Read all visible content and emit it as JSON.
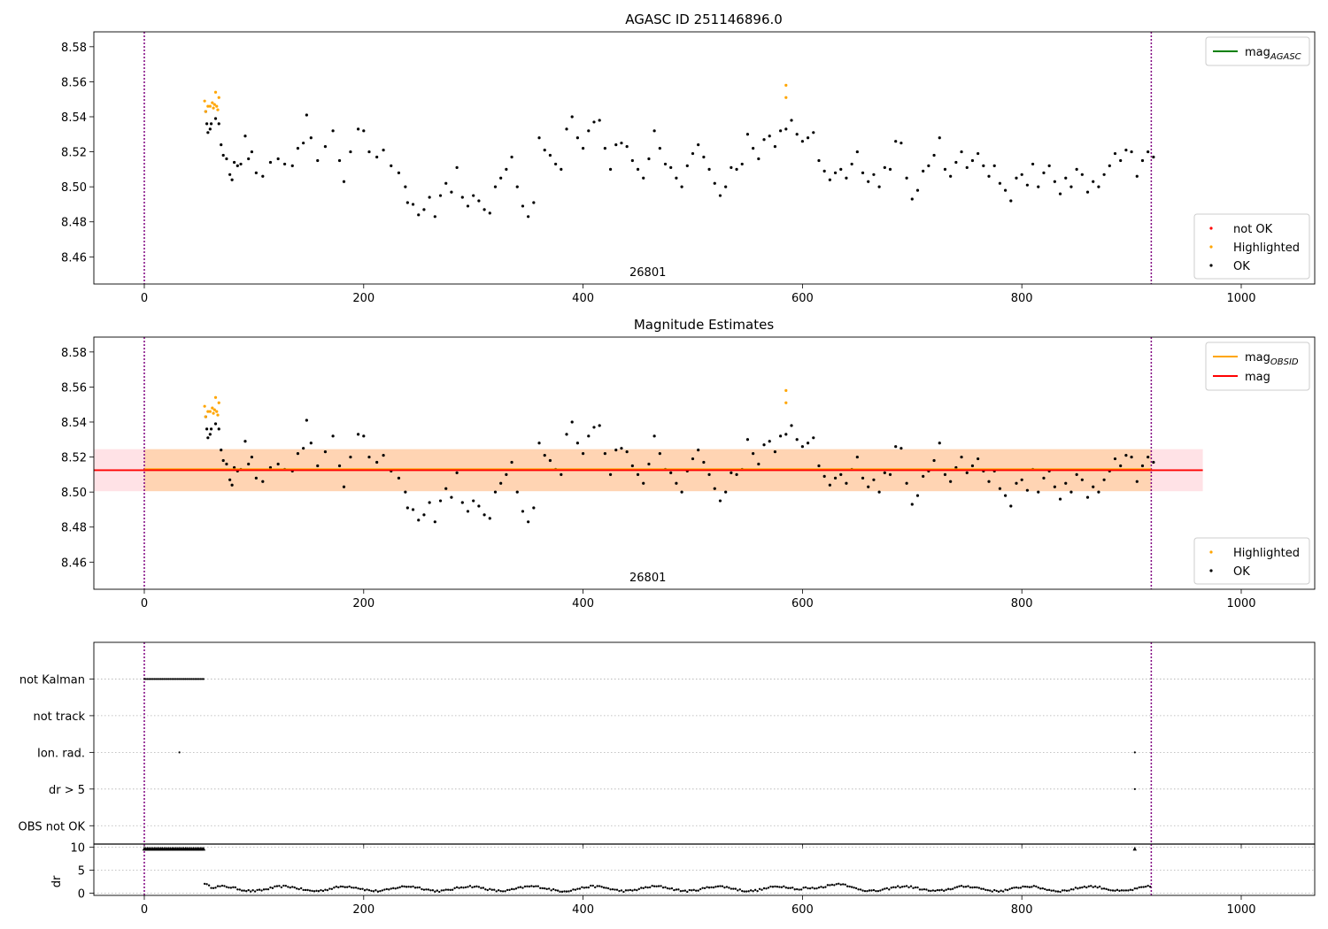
{
  "figure_title": "AGASC ID 251146896.0",
  "chart_data": [
    {
      "type": "scatter",
      "panel": "top",
      "title": "",
      "xlim": [
        -46,
        1067
      ],
      "ylim": [
        8.4445,
        8.5885
      ],
      "x_ticks": [
        0,
        200,
        400,
        600,
        800,
        1000
      ],
      "y_ticks": [
        8.46,
        8.48,
        8.5,
        8.52,
        8.54,
        8.56,
        8.58
      ],
      "y_tick_labels": [
        "8.46",
        "8.48",
        "8.50",
        "8.52",
        "8.54",
        "8.56",
        "8.58"
      ],
      "grid": false,
      "obsid_bounds": [
        0,
        918
      ],
      "obsid_label": "26801",
      "obsid_label_x": 459,
      "legend_lines": [
        {
          "label": "mag",
          "subscript": "AGASC",
          "color": "#008000"
        }
      ],
      "legend_points": [
        {
          "label": "not OK",
          "color": "#ff0000"
        },
        {
          "label": "Highlighted",
          "color": "#ffa500"
        },
        {
          "label": "OK",
          "color": "#000000"
        }
      ],
      "highlighted_points": [
        [
          55,
          8.549
        ],
        [
          56,
          8.543
        ],
        [
          58,
          8.546
        ],
        [
          60,
          8.546
        ],
        [
          62,
          8.548
        ],
        [
          63,
          8.545
        ],
        [
          64,
          8.547
        ],
        [
          65,
          8.554
        ],
        [
          66,
          8.546
        ],
        [
          67,
          8.544
        ],
        [
          68,
          8.551
        ],
        [
          585,
          8.558
        ],
        [
          585,
          8.551
        ]
      ],
      "ok_points": [
        [
          56,
          8.543
        ],
        [
          57,
          8.536
        ],
        [
          58,
          8.531
        ],
        [
          60,
          8.533
        ],
        [
          61,
          8.536
        ],
        [
          65,
          8.539
        ],
        [
          68,
          8.536
        ],
        [
          70,
          8.524
        ],
        [
          72,
          8.518
        ],
        [
          75,
          8.516
        ],
        [
          78,
          8.507
        ],
        [
          80,
          8.504
        ],
        [
          82,
          8.514
        ],
        [
          85,
          8.512
        ],
        [
          88,
          8.513
        ],
        [
          92,
          8.529
        ],
        [
          95,
          8.516
        ],
        [
          98,
          8.52
        ],
        [
          102,
          8.508
        ],
        [
          108,
          8.506
        ],
        [
          115,
          8.514
        ],
        [
          122,
          8.516
        ],
        [
          128,
          8.513
        ],
        [
          135,
          8.512
        ],
        [
          140,
          8.522
        ],
        [
          145,
          8.525
        ],
        [
          148,
          8.541
        ],
        [
          152,
          8.528
        ],
        [
          158,
          8.515
        ],
        [
          165,
          8.523
        ],
        [
          172,
          8.532
        ],
        [
          178,
          8.515
        ],
        [
          182,
          8.503
        ],
        [
          188,
          8.52
        ],
        [
          195,
          8.533
        ],
        [
          200,
          8.532
        ],
        [
          205,
          8.52
        ],
        [
          212,
          8.517
        ],
        [
          218,
          8.521
        ],
        [
          225,
          8.512
        ],
        [
          232,
          8.508
        ],
        [
          238,
          8.5
        ],
        [
          240,
          8.491
        ],
        [
          245,
          8.49
        ],
        [
          250,
          8.484
        ],
        [
          255,
          8.487
        ],
        [
          260,
          8.494
        ],
        [
          265,
          8.483
        ],
        [
          270,
          8.495
        ],
        [
          275,
          8.502
        ],
        [
          280,
          8.497
        ],
        [
          285,
          8.511
        ],
        [
          290,
          8.494
        ],
        [
          295,
          8.489
        ],
        [
          300,
          8.495
        ],
        [
          305,
          8.492
        ],
        [
          310,
          8.487
        ],
        [
          315,
          8.485
        ],
        [
          320,
          8.5
        ],
        [
          325,
          8.505
        ],
        [
          330,
          8.51
        ],
        [
          335,
          8.517
        ],
        [
          340,
          8.5
        ],
        [
          345,
          8.489
        ],
        [
          350,
          8.483
        ],
        [
          355,
          8.491
        ],
        [
          360,
          8.528
        ],
        [
          365,
          8.521
        ],
        [
          370,
          8.518
        ],
        [
          375,
          8.513
        ],
        [
          380,
          8.51
        ],
        [
          385,
          8.533
        ],
        [
          390,
          8.54
        ],
        [
          395,
          8.528
        ],
        [
          400,
          8.522
        ],
        [
          405,
          8.532
        ],
        [
          410,
          8.537
        ],
        [
          415,
          8.538
        ],
        [
          420,
          8.522
        ],
        [
          425,
          8.51
        ],
        [
          430,
          8.524
        ],
        [
          435,
          8.525
        ],
        [
          440,
          8.523
        ],
        [
          445,
          8.515
        ],
        [
          450,
          8.51
        ],
        [
          455,
          8.505
        ],
        [
          460,
          8.516
        ],
        [
          465,
          8.532
        ],
        [
          470,
          8.522
        ],
        [
          475,
          8.513
        ],
        [
          480,
          8.511
        ],
        [
          485,
          8.505
        ],
        [
          490,
          8.5
        ],
        [
          495,
          8.512
        ],
        [
          500,
          8.519
        ],
        [
          505,
          8.524
        ],
        [
          510,
          8.517
        ],
        [
          515,
          8.51
        ],
        [
          520,
          8.502
        ],
        [
          525,
          8.495
        ],
        [
          530,
          8.5
        ],
        [
          535,
          8.511
        ],
        [
          540,
          8.51
        ],
        [
          545,
          8.513
        ],
        [
          550,
          8.53
        ],
        [
          555,
          8.522
        ],
        [
          560,
          8.516
        ],
        [
          565,
          8.527
        ],
        [
          570,
          8.529
        ],
        [
          575,
          8.523
        ],
        [
          580,
          8.532
        ],
        [
          585,
          8.533
        ],
        [
          590,
          8.538
        ],
        [
          595,
          8.53
        ],
        [
          600,
          8.526
        ],
        [
          605,
          8.528
        ],
        [
          610,
          8.531
        ],
        [
          615,
          8.515
        ],
        [
          620,
          8.509
        ],
        [
          625,
          8.504
        ],
        [
          630,
          8.508
        ],
        [
          635,
          8.51
        ],
        [
          640,
          8.505
        ],
        [
          645,
          8.513
        ],
        [
          650,
          8.52
        ],
        [
          655,
          8.508
        ],
        [
          660,
          8.503
        ],
        [
          665,
          8.507
        ],
        [
          670,
          8.5
        ],
        [
          675,
          8.511
        ],
        [
          680,
          8.51
        ],
        [
          685,
          8.526
        ],
        [
          690,
          8.525
        ],
        [
          695,
          8.505
        ],
        [
          700,
          8.493
        ],
        [
          705,
          8.498
        ],
        [
          710,
          8.509
        ],
        [
          715,
          8.512
        ],
        [
          720,
          8.518
        ],
        [
          725,
          8.528
        ],
        [
          730,
          8.51
        ],
        [
          735,
          8.506
        ],
        [
          740,
          8.514
        ],
        [
          745,
          8.52
        ],
        [
          750,
          8.511
        ],
        [
          755,
          8.515
        ],
        [
          760,
          8.519
        ],
        [
          765,
          8.512
        ],
        [
          770,
          8.506
        ],
        [
          775,
          8.512
        ],
        [
          780,
          8.502
        ],
        [
          785,
          8.498
        ],
        [
          790,
          8.492
        ],
        [
          795,
          8.505
        ],
        [
          800,
          8.507
        ],
        [
          805,
          8.501
        ],
        [
          810,
          8.513
        ],
        [
          815,
          8.5
        ],
        [
          820,
          8.508
        ],
        [
          825,
          8.512
        ],
        [
          830,
          8.503
        ],
        [
          835,
          8.496
        ],
        [
          840,
          8.505
        ],
        [
          845,
          8.5
        ],
        [
          850,
          8.51
        ],
        [
          855,
          8.507
        ],
        [
          860,
          8.497
        ],
        [
          865,
          8.503
        ],
        [
          870,
          8.5
        ],
        [
          875,
          8.507
        ],
        [
          880,
          8.512
        ],
        [
          885,
          8.519
        ],
        [
          890,
          8.515
        ],
        [
          895,
          8.521
        ],
        [
          900,
          8.52
        ],
        [
          905,
          8.506
        ],
        [
          910,
          8.515
        ],
        [
          915,
          8.52
        ],
        [
          920,
          8.517
        ]
      ]
    },
    {
      "type": "scatter",
      "panel": "middle",
      "title": "Magnitude Estimates",
      "xlim": [
        -46,
        1067
      ],
      "ylim": [
        8.4445,
        8.5885
      ],
      "x_ticks": [
        0,
        200,
        400,
        600,
        800,
        1000
      ],
      "y_ticks": [
        8.46,
        8.48,
        8.5,
        8.52,
        8.54,
        8.56,
        8.58
      ],
      "y_tick_labels": [
        "8.46",
        "8.48",
        "8.50",
        "8.52",
        "8.54",
        "8.56",
        "8.58"
      ],
      "grid": false,
      "obsid_bounds": [
        0,
        918
      ],
      "obsid_label": "26801",
      "obsid_label_x": 459,
      "mag": 8.5125,
      "mag_band": [
        8.5005,
        8.5245
      ],
      "mag_band_x": [
        -46,
        965
      ],
      "mag_obsid": 8.513,
      "mag_obsid_band": [
        8.5005,
        8.5245
      ],
      "mag_obsid_x": [
        0,
        918
      ],
      "legend_lines": [
        {
          "label": "mag",
          "subscript": "OBSID",
          "color": "#ffa500"
        },
        {
          "label": "mag",
          "subscript": "",
          "color": "#ff0000"
        }
      ],
      "legend_points": [
        {
          "label": "Highlighted",
          "color": "#ffa500"
        },
        {
          "label": "OK",
          "color": "#000000"
        }
      ]
    },
    {
      "type": "scatter",
      "panel": "flags",
      "title": "",
      "xlim": [
        -46,
        1067
      ],
      "ylim": [
        -0.5,
        5
      ],
      "x_ticks": [
        0,
        200,
        400,
        600,
        800,
        1000
      ],
      "categories": [
        "OBS not OK",
        "dr > 5",
        "Ion. rad.",
        "not track",
        "not Kalman"
      ],
      "grid": "horizontal",
      "obsid_bounds": [
        0,
        918
      ],
      "flag_points": {
        "not Kalman": {
          "x_start": 0,
          "x_end": 54,
          "step": 1.5
        },
        "Ion. rad.": [
          32,
          903
        ],
        "dr > 5": [
          903
        ]
      }
    },
    {
      "type": "scatter",
      "panel": "dr",
      "title": "",
      "ylabel": "dr",
      "xlim": [
        -46,
        1067
      ],
      "ylim": [
        -0.5,
        10.7
      ],
      "x_ticks": [
        0,
        200,
        400,
        600,
        800,
        1000
      ],
      "x_tick_labels": [
        "0",
        "200",
        "400",
        "600",
        "800",
        "1000"
      ],
      "y_ticks": [
        0,
        5,
        10
      ],
      "y_tick_labels": [
        "0",
        "5",
        "10"
      ],
      "grid": "horizontal",
      "obsid_bounds": [
        0,
        918
      ],
      "clipped_points": {
        "x_start": 0,
        "x_end": 54,
        "step": 1.5,
        "extra": [
          903
        ],
        "value": 10
      },
      "dr_series": {
        "x_start": 55,
        "x_end": 918,
        "step": 2
      }
    }
  ]
}
